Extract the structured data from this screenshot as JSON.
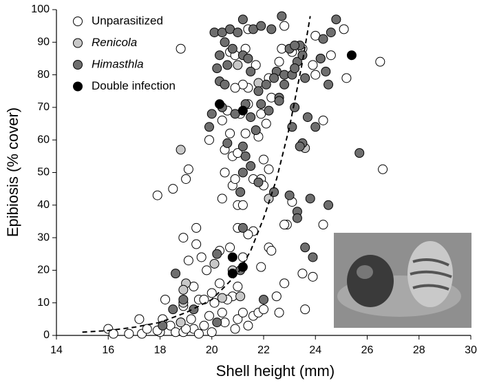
{
  "chart_data": {
    "type": "scatter",
    "x_label": "Shell height (mm)",
    "y_label": "Epibiosis (% cover)",
    "xlim": [
      14,
      30
    ],
    "xticks": [
      14,
      16,
      18,
      20,
      22,
      24,
      26,
      28,
      30
    ],
    "ylim": [
      0,
      100
    ],
    "yticks": [
      0,
      10,
      20,
      30,
      40,
      50,
      60,
      70,
      80,
      90,
      100
    ],
    "legend": "upper left",
    "series": [
      {
        "name": "Unparasitized",
        "color": "#ffffff",
        "italic": false,
        "x": [
          16.0,
          16.2,
          16.8,
          17.2,
          17.3,
          17.5,
          17.9,
          18.5,
          18.8,
          18.9,
          19.1,
          19.0,
          19.4,
          19.4,
          19.6,
          19.1,
          19.3,
          19.5,
          18.9,
          18.2,
          18.1,
          18.4,
          18.6,
          18.9,
          19.2,
          19.3,
          19.5,
          19.7,
          19.9,
          20.0,
          20.1,
          20.3,
          20.4,
          20.5,
          20.8,
          21.0,
          21.2,
          21.4,
          21.6,
          21.8,
          22.0,
          22.5,
          22.6,
          22.8,
          23.6,
          23.5,
          23.9,
          24.3,
          22.9,
          22.2,
          21.6,
          21.4,
          20.3,
          20.7,
          21.0,
          21.2,
          19.8,
          20.4,
          20.8,
          20.9,
          21.0,
          21.2,
          20.5,
          20.5,
          20.7,
          20.8,
          21.0,
          21.3,
          21.6,
          21.9,
          22.0,
          22.0,
          22.2,
          19.9,
          20.4,
          20.6,
          21.1,
          21.4,
          21.9,
          22.1,
          21.8,
          21.4,
          21.2,
          20.9,
          20.7,
          21.3,
          21.4,
          20.9,
          21.7,
          22.2,
          22.3,
          22.6,
          22.7,
          22.8,
          23.1,
          23.5,
          23.9,
          24.0,
          24.0,
          24.2,
          24.6,
          25.1,
          25.2,
          26.5,
          26.6,
          24.3,
          23.1,
          22.8,
          22.3,
          21.9,
          21.0,
          20.6,
          20.0,
          19.7,
          18.8,
          18.0,
          17.9,
          19.0,
          20.9
        ],
        "values": [
          2,
          0.5,
          0.5,
          5,
          0.5,
          2,
          43,
          45,
          88,
          30,
          51,
          48,
          33,
          28,
          24,
          23,
          15,
          11,
          9,
          11,
          5,
          3,
          1,
          1,
          5,
          2,
          0.5,
          3,
          6,
          1,
          10,
          16,
          7,
          4,
          12,
          5,
          7,
          3,
          6,
          7,
          8,
          12,
          7,
          16,
          8,
          19,
          18,
          34,
          34,
          27,
          32,
          31,
          26,
          27,
          33,
          24,
          20,
          42,
          46,
          48,
          40,
          40,
          57,
          50,
          62,
          55,
          56,
          62,
          48,
          48,
          54,
          46,
          51,
          60,
          66,
          69,
          68,
          71,
          68,
          65,
          61,
          76,
          77,
          76,
          87,
          88,
          94,
          86,
          83,
          79,
          73,
          84,
          88,
          95,
          87,
          88,
          83,
          80,
          92,
          85,
          86,
          94,
          79,
          84,
          51,
          66,
          41,
          34,
          26,
          21,
          15,
          11,
          13,
          11,
          4,
          1,
          1.5,
          2,
          2
        ]
      },
      {
        "name": "Renicola",
        "color": "#c8c8c8",
        "italic": true,
        "x": [
          18.8,
          19.0,
          18.9,
          20.1,
          20.8,
          21.1,
          21.8,
          22.2,
          23.6,
          20.4,
          18.8,
          18.9,
          21.0
        ],
        "values": [
          57,
          16,
          14,
          22,
          20,
          12,
          77.5,
          42,
          57.5,
          11.5,
          4,
          10,
          83
        ]
      },
      {
        "name": "Himasthla",
        "color": "#6e6e6e",
        "italic": true,
        "x": [
          20.1,
          20.4,
          20.7,
          21.0,
          21.2,
          21.6,
          21.9,
          22.3,
          22.7,
          23.0,
          23.4,
          24.8,
          20.3,
          20.5,
          20.8,
          21.2,
          21.4,
          20.2,
          20.6,
          21.5,
          22.5,
          22.8,
          23.1,
          23.3,
          23.5,
          23.2,
          24.2,
          24.3,
          24.6,
          24.4,
          24.5,
          20.3,
          20.5,
          21.8,
          22.1,
          22.4,
          22.6,
          22.8,
          23.2,
          23.6,
          20.0,
          20.4,
          20.9,
          21.3,
          21.5,
          21.7,
          21.9,
          22.2,
          22.6,
          23.2,
          19.9,
          20.6,
          21.2,
          21.3,
          21.5,
          21.2,
          21.1,
          21.8,
          22.4,
          23.5,
          23.4,
          23.7,
          24.0,
          23.1,
          23.0,
          23.3,
          23.3,
          23.8,
          24.5,
          21.2,
          23.6,
          23.9,
          20.2,
          21.1,
          18.6,
          22.0,
          18.9,
          19.3,
          18.5,
          18.1,
          20.2,
          25.7
        ],
        "values": [
          93,
          93,
          94,
          93,
          97,
          94,
          95,
          94,
          98,
          88,
          89,
          97,
          86,
          90,
          88,
          86,
          85,
          82,
          83,
          81,
          81,
          80,
          80,
          84,
          86,
          89,
          85,
          91,
          93,
          81,
          77,
          78,
          77,
          75,
          77,
          79,
          73,
          77,
          82,
          79,
          68,
          70,
          68,
          71,
          67,
          63,
          71,
          69,
          72,
          70,
          64,
          59,
          58,
          55,
          52,
          50,
          44,
          47,
          44,
          59,
          58,
          67,
          64,
          64,
          43,
          38,
          36,
          42,
          40,
          33,
          27,
          24,
          25,
          20,
          19,
          11,
          11,
          8,
          8,
          3,
          4,
          56
        ]
      },
      {
        "name": "Double infection",
        "color": "#000000",
        "italic": false,
        "x": [
          20.3,
          21.2,
          25.4,
          20.8,
          21.2,
          20.8
        ],
        "values": [
          71,
          69,
          86,
          24,
          21,
          19
        ]
      }
    ],
    "trend": {
      "color": "#000000",
      "x": [
        15,
        16,
        17,
        18,
        19,
        20,
        21,
        21.5,
        22,
        22.5,
        23,
        23.5,
        23.8
      ],
      "values": [
        1,
        1.5,
        2.5,
        4,
        7,
        11,
        19,
        26,
        36,
        48,
        64,
        84,
        98
      ]
    }
  }
}
